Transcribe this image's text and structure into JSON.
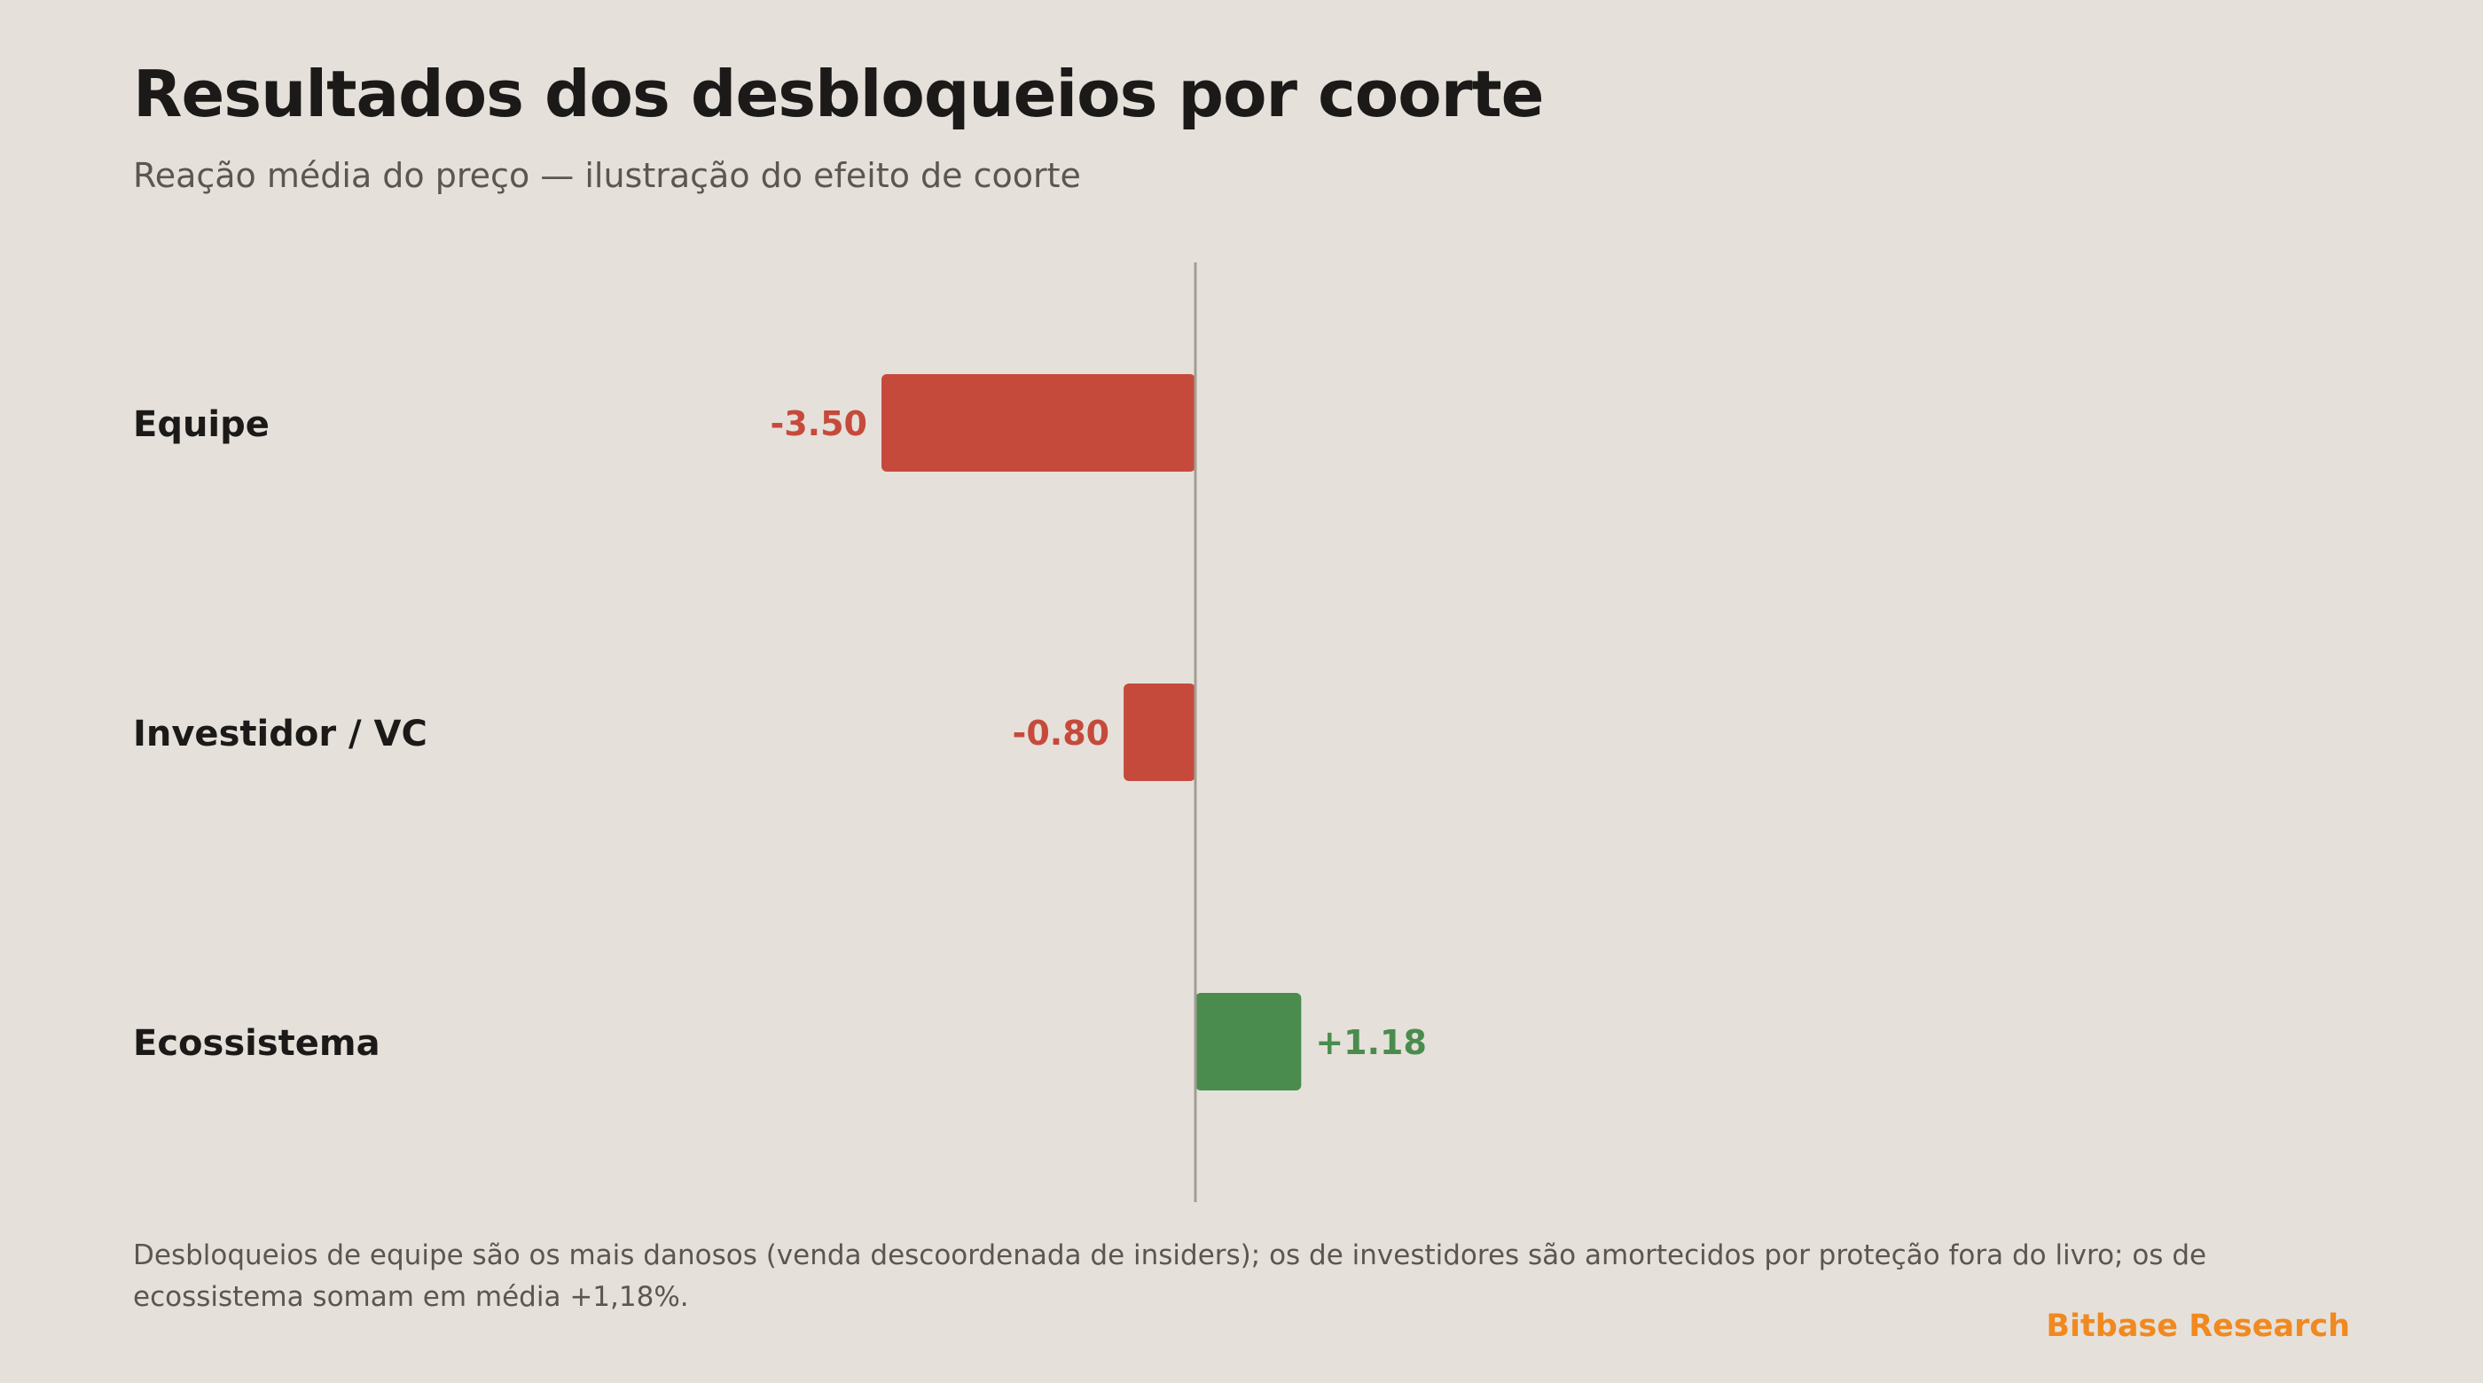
{
  "header": {
    "title": "Resultados dos desbloqueios por coorte",
    "subtitle": "Reação média do preço — ilustração do efeito de coorte"
  },
  "chart_data": {
    "type": "bar",
    "orientation": "horizontal",
    "categories": [
      "Equipe",
      "Investidor / VC",
      "Ecossistema"
    ],
    "values": [
      -3.5,
      -0.8,
      1.18
    ],
    "value_labels": [
      "-3.50",
      "-0.80",
      "+1.18"
    ],
    "xlim": [
      -7.0,
      7.0
    ],
    "grid": false,
    "zero_line": true,
    "colors": {
      "negative": "#c64a3b",
      "positive": "#4a8c4e",
      "zero_line": "#a29d96",
      "category_label": "#1b1a18"
    }
  },
  "footer": {
    "note": "Desbloqueios de equipe são os mais danosos (venda descoordenada de insiders); os de investidores são amortecidos por proteção fora do livro; os de ecossistema somam em média +1,18%.",
    "brand": "Bitbase Research"
  }
}
